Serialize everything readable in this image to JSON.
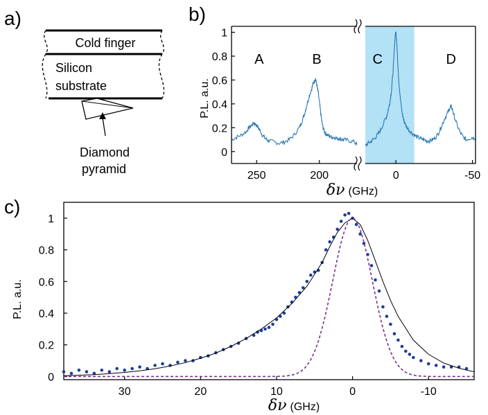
{
  "panels": {
    "a": {
      "label": "a)",
      "layers": [
        "Cold finger",
        "Silicon",
        "substrate"
      ],
      "pyramid_label": [
        "Diamond",
        "pyramid"
      ]
    },
    "b": {
      "label": "b)"
    },
    "c": {
      "label": "c)"
    }
  },
  "colors": {
    "trace_b": "#2878b5",
    "shade": "#b3e1f5",
    "points_c": "#1a3e9a",
    "fit_c": "#000000",
    "dash_c": "#7b2d8e"
  },
  "chart_data": [
    {
      "id": "b",
      "type": "line",
      "title": "",
      "xlabel": "δν",
      "xlabel_unit": "(GHz)",
      "ylabel": "P.L. a.u.",
      "x_axis_reversed": true,
      "x_axis_broken": true,
      "segments": [
        {
          "xlim": [
            270,
            170
          ]
        },
        {
          "xlim": [
            20,
            -52
          ]
        }
      ],
      "xticks": [
        250,
        200,
        0,
        -50
      ],
      "xtick_labels": [
        "250",
        "200",
        "0",
        "-50"
      ],
      "ylim": [
        -0.1,
        1.05
      ],
      "yticks": [
        0,
        0.2,
        0.4,
        0.6,
        0.8,
        1
      ],
      "ytick_labels": [
        "0",
        "0.2",
        "0.4",
        "0.6",
        "0.8",
        "1"
      ],
      "shaded_region_x": [
        20,
        -12
      ],
      "peak_labels": [
        {
          "text": "A",
          "x": 248
        },
        {
          "text": "B",
          "x": 202
        },
        {
          "text": "C",
          "x": 12
        },
        {
          "text": "D",
          "x": -36
        }
      ],
      "series": [
        {
          "x": [
            270,
            266,
            262,
            258,
            256,
            254,
            252,
            250,
            248,
            246,
            244,
            242,
            240,
            236,
            232,
            228,
            224,
            220,
            216,
            214,
            212,
            210,
            208,
            206,
            205,
            204,
            203,
            202,
            201,
            200,
            199,
            198,
            197,
            196,
            195,
            194,
            192,
            190,
            188,
            186,
            184,
            182,
            180,
            176,
            172,
            170
          ],
          "values": [
            0.1,
            0.12,
            0.14,
            0.17,
            0.2,
            0.22,
            0.24,
            0.22,
            0.19,
            0.15,
            0.12,
            0.1,
            0.09,
            0.08,
            0.07,
            0.08,
            0.1,
            0.14,
            0.2,
            0.25,
            0.31,
            0.39,
            0.47,
            0.53,
            0.57,
            0.59,
            0.61,
            0.56,
            0.5,
            0.42,
            0.33,
            0.25,
            0.2,
            0.17,
            0.15,
            0.14,
            0.13,
            0.12,
            0.12,
            0.11,
            0.11,
            0.1,
            0.1,
            0.09,
            0.08,
            0.06
          ]
        },
        {
          "x": [
            20,
            18,
            16,
            14,
            12,
            10,
            8,
            6,
            5,
            4,
            3,
            2,
            1,
            0.5,
            0,
            -0.5,
            -1,
            -2,
            -3,
            -4,
            -5,
            -6,
            -8,
            -10,
            -12,
            -14,
            -16,
            -18,
            -20,
            -22,
            -24,
            -26,
            -28,
            -30,
            -32,
            -34,
            -35,
            -36,
            -37,
            -38,
            -40,
            -42,
            -44,
            -46,
            -48,
            -50,
            -52
          ],
          "values": [
            0.05,
            0.07,
            0.09,
            0.11,
            0.14,
            0.18,
            0.24,
            0.3,
            0.35,
            0.41,
            0.5,
            0.65,
            0.86,
            0.97,
            1.0,
            0.94,
            0.8,
            0.57,
            0.43,
            0.33,
            0.27,
            0.23,
            0.19,
            0.16,
            0.14,
            0.12,
            0.11,
            0.1,
            0.09,
            0.09,
            0.1,
            0.12,
            0.16,
            0.22,
            0.28,
            0.33,
            0.36,
            0.38,
            0.35,
            0.3,
            0.22,
            0.16,
            0.12,
            0.1,
            0.11,
            0.12,
            0.11
          ]
        }
      ]
    },
    {
      "id": "c",
      "type": "scatter",
      "title": "",
      "xlabel": "δν",
      "xlabel_unit": "(GHz)",
      "ylabel": "P.L. a.u.",
      "x_axis_reversed": true,
      "xlim": [
        38,
        -16
      ],
      "ylim": [
        -0.02,
        1.1
      ],
      "xticks": [
        30,
        20,
        10,
        0,
        -10
      ],
      "xtick_labels": [
        "30",
        "20",
        "10",
        "0",
        "-10"
      ],
      "yticks": [
        0,
        0.2,
        0.4,
        0.6,
        0.8,
        1
      ],
      "ytick_labels": [
        "0",
        "0.2",
        "0.4",
        "0.6",
        "0.8",
        "1"
      ],
      "series": [
        {
          "kind": "points",
          "x": [
            38,
            37,
            36,
            35,
            34,
            33,
            32,
            31,
            30,
            29,
            28,
            27,
            26,
            25,
            24,
            23,
            22,
            21,
            20,
            19,
            18,
            17,
            16,
            15,
            14,
            13,
            12.5,
            12,
            11.5,
            11,
            10.5,
            10,
            9.5,
            9,
            8.5,
            8,
            7.5,
            7,
            6.5,
            6,
            5.5,
            5,
            4.5,
            4,
            3.5,
            3,
            2.5,
            2,
            1.5,
            1,
            0.5,
            0,
            -0.5,
            -1,
            -1.5,
            -2,
            -2.5,
            -3,
            -3.5,
            -4,
            -4.5,
            -5,
            -5.5,
            -6,
            -6.5,
            -7,
            -7.5,
            -8,
            -9,
            -10,
            -11,
            -12,
            -13,
            -14,
            -15
          ],
          "values": [
            0.03,
            0.02,
            0.04,
            0.03,
            0.02,
            0.04,
            0.03,
            0.05,
            0.04,
            0.05,
            0.06,
            0.05,
            0.07,
            0.08,
            0.07,
            0.09,
            0.1,
            0.1,
            0.12,
            0.13,
            0.15,
            0.17,
            0.19,
            0.21,
            0.24,
            0.26,
            0.28,
            0.29,
            0.3,
            0.31,
            0.33,
            0.36,
            0.38,
            0.4,
            0.44,
            0.47,
            0.5,
            0.53,
            0.56,
            0.6,
            0.64,
            0.66,
            0.67,
            0.72,
            0.8,
            0.85,
            0.88,
            0.93,
            0.98,
            1.02,
            1.03,
            1.0,
            0.96,
            0.9,
            0.84,
            0.77,
            0.7,
            0.61,
            0.54,
            0.44,
            0.38,
            0.33,
            0.27,
            0.23,
            0.19,
            0.16,
            0.14,
            0.12,
            0.1,
            0.08,
            0.07,
            0.06,
            0.06,
            0.06,
            0.05
          ]
        },
        {
          "kind": "fit",
          "x": [
            38,
            36,
            34,
            32,
            30,
            28,
            26,
            24,
            22,
            20,
            18,
            16,
            14,
            12,
            10,
            8,
            6,
            4,
            3,
            2,
            1,
            0,
            -1,
            -2,
            -3,
            -4,
            -5,
            -6,
            -8,
            -10,
            -12,
            -14,
            -16
          ],
          "values": [
            0.005,
            0.008,
            0.012,
            0.018,
            0.026,
            0.036,
            0.049,
            0.066,
            0.088,
            0.115,
            0.148,
            0.19,
            0.24,
            0.3,
            0.37,
            0.46,
            0.57,
            0.72,
            0.82,
            0.91,
            0.97,
            1.0,
            0.96,
            0.86,
            0.73,
            0.6,
            0.48,
            0.38,
            0.23,
            0.14,
            0.085,
            0.052,
            0.03
          ]
        },
        {
          "kind": "gaussian",
          "center": 0,
          "sigma": 2.6,
          "amplitude": 1.0
        }
      ]
    }
  ]
}
